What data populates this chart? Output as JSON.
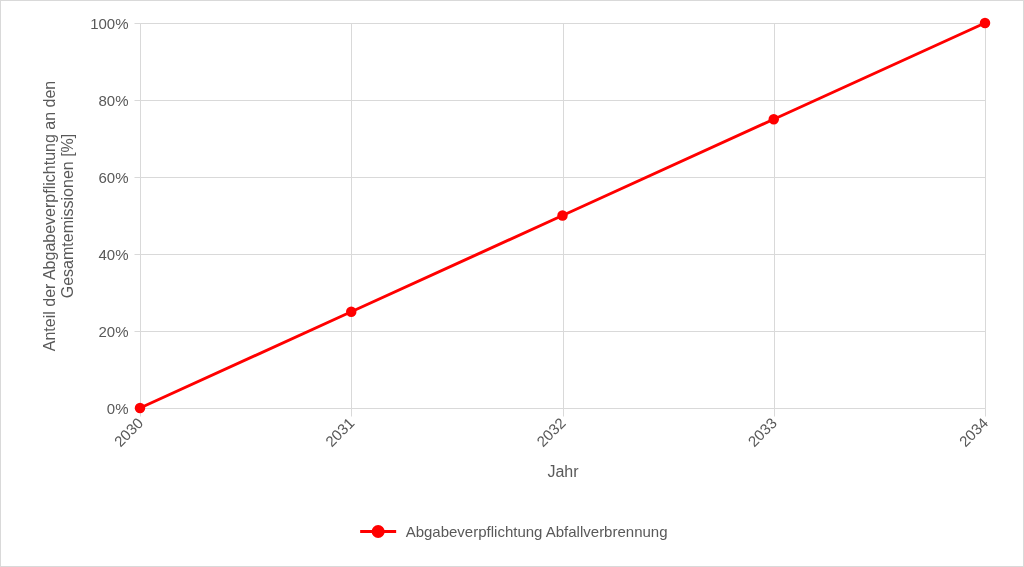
{
  "chart_data": {
    "type": "line",
    "xlabel": "Jahr",
    "ylabel": "Anteil der Abgabeverpflichtung an den Gesamtemissionen [%]",
    "x": [
      2030,
      2031,
      2032,
      2033,
      2034
    ],
    "series": [
      {
        "name": "Abgabeverpflichtung Abfallverbrennung",
        "color": "#ff0000",
        "values": [
          0,
          25,
          50,
          75,
          100
        ]
      }
    ],
    "xlim": [
      2030,
      2034
    ],
    "xticks": [
      2030,
      2031,
      2032,
      2033,
      2034
    ],
    "ylim": [
      0,
      100
    ],
    "yticks": [
      {
        "value": 0,
        "label": "0%"
      },
      {
        "value": 20,
        "label": "20%"
      },
      {
        "value": 40,
        "label": "40%"
      },
      {
        "value": 60,
        "label": "60%"
      },
      {
        "value": 80,
        "label": "80%"
      },
      {
        "value": 100,
        "label": "100%"
      }
    ],
    "grid": true,
    "legend": "bottom",
    "marker": "circle",
    "line_style": "solid"
  }
}
